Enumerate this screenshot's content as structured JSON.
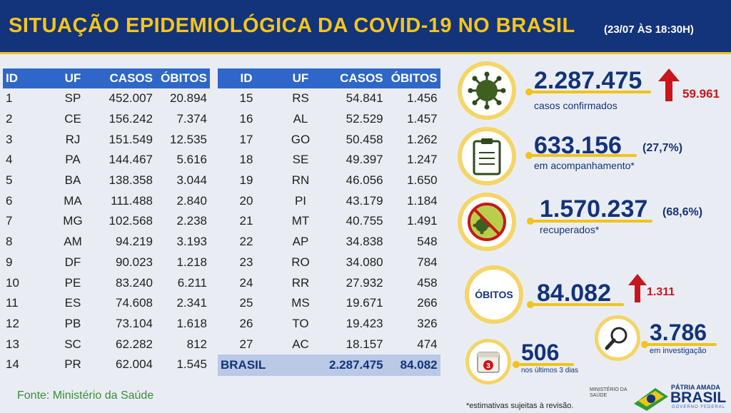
{
  "header": {
    "title": "SITUAÇÃO EPIDEMIOLÓGICA DA COVID-19 NO BRASIL",
    "date": "(23/07 ÀS 18:30H)"
  },
  "table1": {
    "headers": [
      "ID",
      "UF",
      "CASOS",
      "ÓBITOS"
    ],
    "rows": [
      [
        "1",
        "SP",
        "452.007",
        "20.894"
      ],
      [
        "2",
        "CE",
        "156.242",
        "7.374"
      ],
      [
        "3",
        "RJ",
        "151.549",
        "12.535"
      ],
      [
        "4",
        "PA",
        "144.467",
        "5.616"
      ],
      [
        "5",
        "BA",
        "138.358",
        "3.044"
      ],
      [
        "6",
        "MA",
        "111.488",
        "2.840"
      ],
      [
        "7",
        "MG",
        "102.568",
        "2.238"
      ],
      [
        "8",
        "AM",
        "94.219",
        "3.193"
      ],
      [
        "9",
        "DF",
        "90.023",
        "1.218"
      ],
      [
        "10",
        "PE",
        "83.240",
        "6.211"
      ],
      [
        "11",
        "ES",
        "74.608",
        "2.341"
      ],
      [
        "12",
        "PB",
        "73.104",
        "1.618"
      ],
      [
        "13",
        "SC",
        "62.282",
        "812"
      ],
      [
        "14",
        "PR",
        "62.004",
        "1.545"
      ]
    ]
  },
  "table2": {
    "headers": [
      "ID",
      "UF",
      "CASOS",
      "ÓBITOS"
    ],
    "rows": [
      [
        "15",
        "RS",
        "54.841",
        "1.456"
      ],
      [
        "16",
        "AL",
        "52.529",
        "1.457"
      ],
      [
        "17",
        "GO",
        "50.458",
        "1.262"
      ],
      [
        "18",
        "SE",
        "49.397",
        "1.247"
      ],
      [
        "19",
        "RN",
        "46.056",
        "1.650"
      ],
      [
        "20",
        "PI",
        "43.179",
        "1.184"
      ],
      [
        "21",
        "MT",
        "40.755",
        "1.491"
      ],
      [
        "22",
        "AP",
        "34.838",
        "548"
      ],
      [
        "23",
        "RO",
        "34.080",
        "784"
      ],
      [
        "24",
        "RR",
        "27.932",
        "458"
      ],
      [
        "25",
        "MS",
        "19.671",
        "266"
      ],
      [
        "26",
        "TO",
        "19.423",
        "326"
      ],
      [
        "27",
        "AC",
        "18.157",
        "474"
      ]
    ],
    "total": [
      "BRASIL",
      "2.287.475",
      "84.082"
    ]
  },
  "stats": {
    "confirmed": {
      "value": "2.287.475",
      "label": "casos confirmados",
      "delta": "59.961",
      "icon": "virus-icon"
    },
    "monitoring": {
      "value": "633.156",
      "pct": "(27,7%)",
      "label": "em acompanhamento*",
      "icon": "clipboard-icon"
    },
    "recovered": {
      "value": "1.570.237",
      "pct": "(68,6%)",
      "label": "recuperados*",
      "icon": "crossed-virus-icon"
    },
    "deaths": {
      "badge": "ÓBITOS",
      "value": "84.082",
      "delta": "1.311"
    },
    "investigation": {
      "value": "3.786",
      "label": "em investigação",
      "icon": "magnifier-icon"
    },
    "last3days": {
      "value": "506",
      "label": "nos últimos 3 dias",
      "icon_text": "3",
      "icon": "calendar-icon"
    }
  },
  "footer": {
    "source": "Fonte: Ministério da Saúde",
    "note": "*estimativas sujeitas à revisão.",
    "ministry_logo": [
      "MINISTÉRIO DA",
      "SAÚDE"
    ],
    "gov_logo": {
      "line1": "PÁTRIA AMADA",
      "line2": "BRASIL",
      "line3": "GOVERNO FEDERAL"
    }
  },
  "colors": {
    "header_bg": "#13337a",
    "title": "#f5c518",
    "table_header": "#2e67c7",
    "accent_yellow": "#f0c419",
    "delta_red": "#c7161c"
  }
}
